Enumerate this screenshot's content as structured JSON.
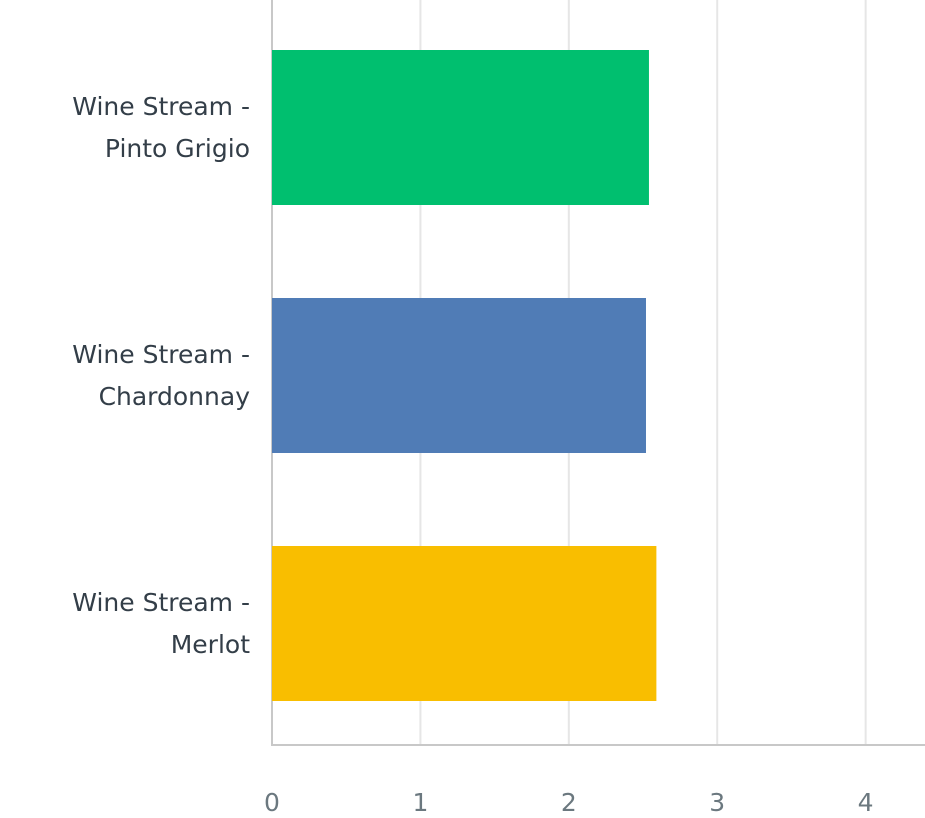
{
  "chart_data": {
    "type": "bar",
    "orientation": "horizontal",
    "categories": [
      "Wine Stream - Pinto Grigio",
      "Wine Stream - Chardonnay",
      "Wine Stream - Merlot"
    ],
    "values": [
      2.54,
      2.52,
      2.59
    ],
    "colors": [
      "#00bf6f",
      "#507cb6",
      "#f9be00"
    ],
    "xlim": [
      0,
      4.4
    ],
    "xticks": [
      0,
      1,
      2,
      3,
      4
    ],
    "grid": true
  }
}
